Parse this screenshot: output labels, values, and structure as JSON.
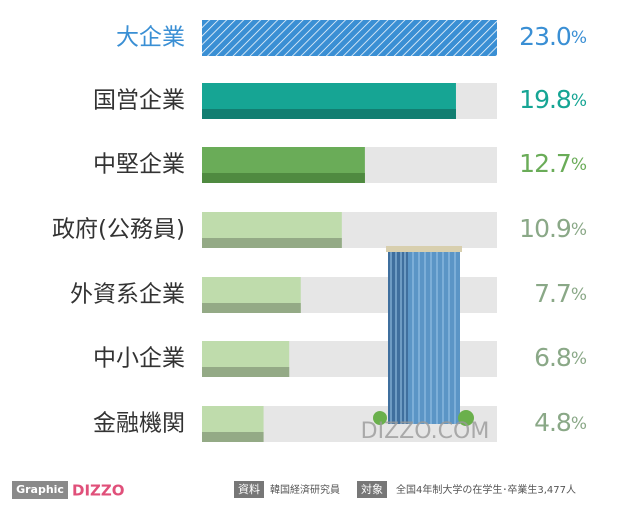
{
  "chart_data": {
    "type": "bar",
    "categories": [
      "大企業",
      "国営企業",
      "中堅企業",
      "政府(公務員)",
      "外資系企業",
      "中小企業",
      "金融機関"
    ],
    "values": [
      23.0,
      19.8,
      12.7,
      10.9,
      7.7,
      6.8,
      4.8
    ],
    "value_labels": [
      "23.0%",
      "19.8%",
      "12.7%",
      "10.9%",
      "7.7%",
      "6.8%",
      "4.8%"
    ],
    "xlim": [
      0,
      23
    ],
    "colors": [
      "#3a8fd4",
      "#16a594",
      "#6aac58",
      "#bfdcac",
      "#bfdcac",
      "#bfdcac",
      "#bfdcac"
    ],
    "shade_colors": [
      "#3a8fd4",
      "#127e71",
      "#4f8a40",
      "#94aa86",
      "#94aa86",
      "#94aa86",
      "#94aa86"
    ],
    "label_colors": [
      "#3a8fd4",
      "#16a594",
      "#6aac58",
      "#8aa887",
      "#8aa887",
      "#8aa887",
      "#8aa887"
    ],
    "hatched": [
      true,
      false,
      false,
      false,
      false,
      false,
      false
    ]
  },
  "watermark": "DIZZO.COM",
  "footer": {
    "brand": "Graphic",
    "logo": "DIZZO",
    "source_tag": "資料",
    "source": "韓国経済研究員",
    "target_tag": "対象",
    "target": "全国4年制大学の在学生･卒業生3,477人"
  }
}
